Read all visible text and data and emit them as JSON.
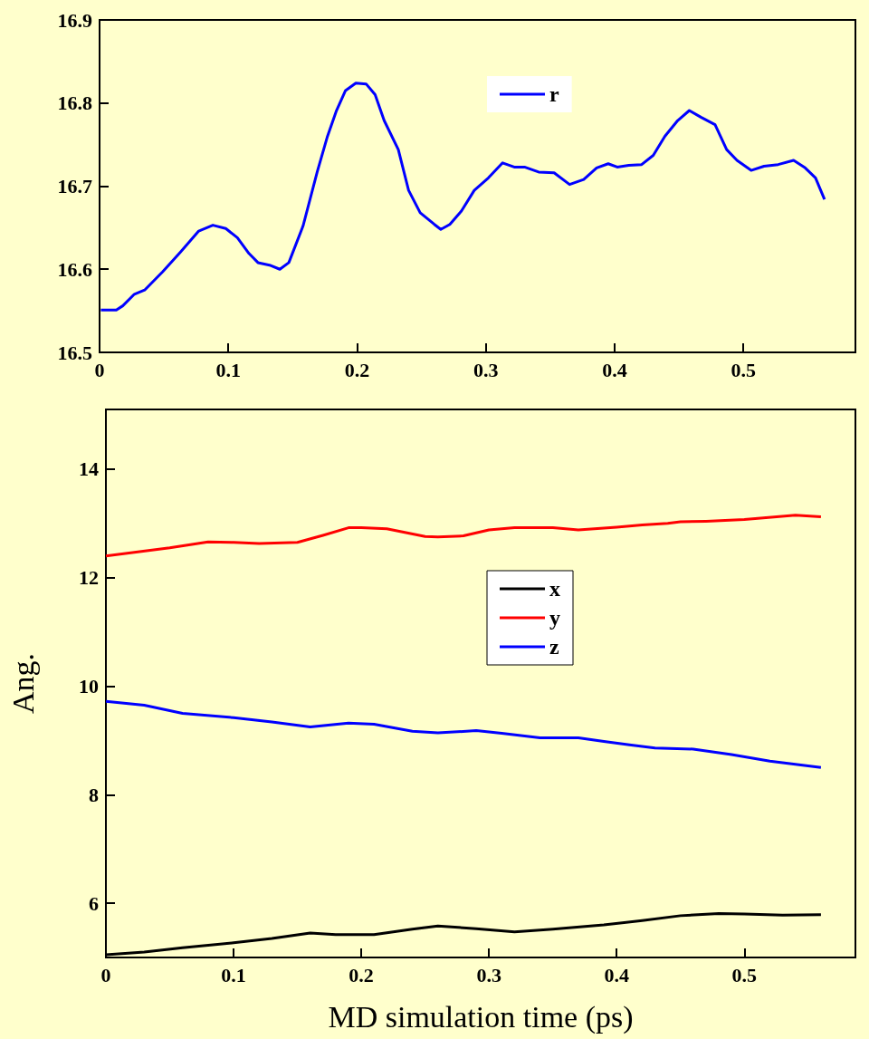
{
  "chart_data": [
    {
      "type": "line",
      "xlim": [
        0,
        0.587
      ],
      "xticks": [
        0,
        0.1,
        0.2,
        0.3,
        0.4,
        0.5
      ],
      "ylim": [
        16.5,
        16.9
      ],
      "yticks": [
        16.5,
        16.6,
        16.7,
        16.8,
        16.9
      ],
      "legend": "top",
      "series": [
        {
          "name": "r",
          "color": "#0000ff",
          "x": [
            0.001,
            0.013,
            0.018,
            0.027,
            0.035,
            0.049,
            0.063,
            0.077,
            0.088,
            0.098,
            0.107,
            0.116,
            0.123,
            0.132,
            0.14,
            0.147,
            0.158,
            0.169,
            0.177,
            0.184,
            0.191,
            0.199,
            0.207,
            0.214,
            0.221,
            0.232,
            0.24,
            0.249,
            0.26,
            0.265,
            0.272,
            0.281,
            0.291,
            0.302,
            0.313,
            0.322,
            0.33,
            0.341,
            0.353,
            0.365,
            0.376,
            0.386,
            0.395,
            0.402,
            0.411,
            0.421,
            0.43,
            0.439,
            0.449,
            0.458,
            0.467,
            0.478,
            0.487,
            0.495,
            0.506,
            0.516,
            0.527,
            0.539,
            0.548,
            0.556,
            0.563
          ],
          "values": [
            16.551,
            16.551,
            16.556,
            16.57,
            16.575,
            16.597,
            16.621,
            16.646,
            16.653,
            16.649,
            16.638,
            16.619,
            16.608,
            16.605,
            16.6,
            16.608,
            16.652,
            16.717,
            16.76,
            16.791,
            16.815,
            16.824,
            16.823,
            16.81,
            16.779,
            16.744,
            16.695,
            16.668,
            16.654,
            16.648,
            16.654,
            16.67,
            16.695,
            16.71,
            16.728,
            16.723,
            16.723,
            16.717,
            16.716,
            16.702,
            16.708,
            16.722,
            16.727,
            16.723,
            16.725,
            16.726,
            16.737,
            16.76,
            16.779,
            16.791,
            16.783,
            16.774,
            16.744,
            16.731,
            16.719,
            16.724,
            16.726,
            16.731,
            16.722,
            16.71,
            16.684
          ]
        }
      ]
    },
    {
      "type": "line",
      "xlabel": "MD simulation time (ps)",
      "ylabel": "Ang.",
      "xlim": [
        0,
        0.587
      ],
      "xticks": [
        0,
        0.1,
        0.2,
        0.3,
        0.4,
        0.5
      ],
      "ylim": [
        5,
        15.1
      ],
      "yticks": [
        6,
        8,
        10,
        12,
        14
      ],
      "legend": "center",
      "series": [
        {
          "name": "x",
          "color": "#000000",
          "x": [
            0,
            0.03,
            0.06,
            0.1,
            0.13,
            0.16,
            0.18,
            0.21,
            0.24,
            0.26,
            0.29,
            0.32,
            0.35,
            0.39,
            0.42,
            0.45,
            0.48,
            0.5,
            0.53,
            0.56
          ],
          "values": [
            5.05,
            5.1,
            5.18,
            5.27,
            5.35,
            5.45,
            5.42,
            5.42,
            5.52,
            5.58,
            5.53,
            5.47,
            5.52,
            5.6,
            5.68,
            5.77,
            5.81,
            5.8,
            5.78,
            5.79
          ]
        },
        {
          "name": "y",
          "color": "#ff0000",
          "x": [
            0,
            0.05,
            0.08,
            0.1,
            0.12,
            0.15,
            0.17,
            0.19,
            0.2,
            0.22,
            0.25,
            0.26,
            0.28,
            0.3,
            0.32,
            0.35,
            0.37,
            0.4,
            0.42,
            0.44,
            0.45,
            0.47,
            0.5,
            0.54,
            0.56
          ],
          "values": [
            12.4,
            12.55,
            12.66,
            12.65,
            12.63,
            12.65,
            12.78,
            12.92,
            12.92,
            12.9,
            12.76,
            12.75,
            12.77,
            12.88,
            12.92,
            12.92,
            12.88,
            12.93,
            12.97,
            13.0,
            13.03,
            13.04,
            13.07,
            13.15,
            13.12
          ]
        },
        {
          "name": "z",
          "color": "#0000ff",
          "x": [
            0,
            0.03,
            0.06,
            0.1,
            0.13,
            0.16,
            0.19,
            0.21,
            0.24,
            0.26,
            0.29,
            0.31,
            0.34,
            0.37,
            0.39,
            0.41,
            0.43,
            0.46,
            0.49,
            0.52,
            0.54,
            0.56
          ],
          "values": [
            9.72,
            9.65,
            9.5,
            9.42,
            9.34,
            9.25,
            9.32,
            9.3,
            9.17,
            9.14,
            9.18,
            9.13,
            9.05,
            9.05,
            8.98,
            8.92,
            8.86,
            8.84,
            8.74,
            8.62,
            8.56,
            8.5
          ]
        }
      ]
    }
  ]
}
